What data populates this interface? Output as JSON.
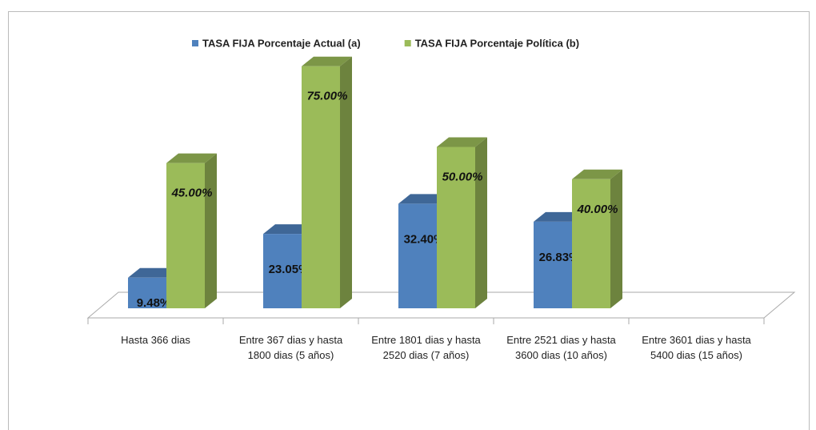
{
  "chart_data": {
    "type": "bar3d",
    "categories": [
      "Hasta 366 dias",
      "Entre 367  dias y hasta 1800 dias (5 años)",
      "Entre 1801  dias y hasta 2520 dias (7 años)",
      "Entre  2521  dias y hasta 3600 dias (10 años)",
      "Entre 3601  dias y hasta 5400 dias (15 años)"
    ],
    "series": [
      {
        "name": "TASA FIJA Porcentaje Actual (a)",
        "color": "#4f81bd",
        "values": [
          9.48,
          23.05,
          32.4,
          26.83,
          null
        ],
        "value_labels": [
          "9.48%",
          "23.05%",
          "32.40%",
          "26.83%",
          null
        ]
      },
      {
        "name": "TASA FIJA Porcentaje Política (b)",
        "color": "#9bbb59",
        "values": [
          45,
          75,
          50,
          40,
          null
        ],
        "value_labels": [
          "45.00%",
          "75.00%",
          "50.00%",
          "40.00%",
          null
        ]
      }
    ],
    "legend": "top"
  }
}
